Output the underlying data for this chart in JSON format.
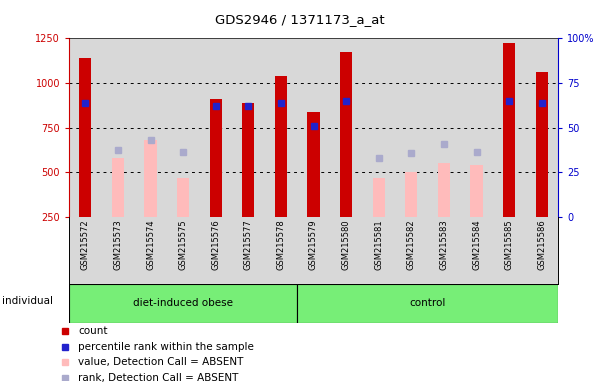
{
  "title": "GDS2946 / 1371173_a_at",
  "samples": [
    "GSM215572",
    "GSM215573",
    "GSM215574",
    "GSM215575",
    "GSM215576",
    "GSM215577",
    "GSM215578",
    "GSM215579",
    "GSM215580",
    "GSM215581",
    "GSM215582",
    "GSM215583",
    "GSM215584",
    "GSM215585",
    "GSM215586"
  ],
  "group1_label": "diet-induced obese",
  "group2_label": "control",
  "group1_count": 7,
  "group2_count": 8,
  "count_values": [
    1140,
    null,
    null,
    null,
    910,
    890,
    1040,
    840,
    1175,
    null,
    null,
    null,
    null,
    1225,
    1060
  ],
  "percentile_rank_pct": [
    64,
    null,
    null,
    null,
    62,
    62,
    64,
    51,
    65,
    null,
    null,
    null,
    null,
    65,
    64
  ],
  "absent_value": [
    null,
    580,
    680,
    470,
    null,
    null,
    null,
    null,
    null,
    470,
    500,
    550,
    540,
    null,
    null
  ],
  "absent_rank_left": [
    null,
    625,
    680,
    615,
    null,
    null,
    null,
    null,
    null,
    580,
    610,
    660,
    615,
    null,
    null
  ],
  "ylim_left": [
    250,
    1250
  ],
  "ylim_right": [
    0,
    100
  ],
  "yticks_left": [
    250,
    500,
    750,
    1000,
    1250
  ],
  "yticks_right": [
    0,
    25,
    50,
    75,
    100
  ],
  "bar_color_red": "#cc0000",
  "bar_color_pink": "#ffbbbb",
  "square_color_blue": "#2222cc",
  "square_color_lightblue": "#aaaacc",
  "group_bg_color": "#77ee77",
  "plot_bg_color": "#d8d8d8",
  "axis_color_left": "#cc0000",
  "axis_color_right": "#0000cc",
  "legend_items": [
    "count",
    "percentile rank within the sample",
    "value, Detection Call = ABSENT",
    "rank, Detection Call = ABSENT"
  ],
  "legend_colors": [
    "#cc0000",
    "#2222cc",
    "#ffbbbb",
    "#aaaacc"
  ]
}
